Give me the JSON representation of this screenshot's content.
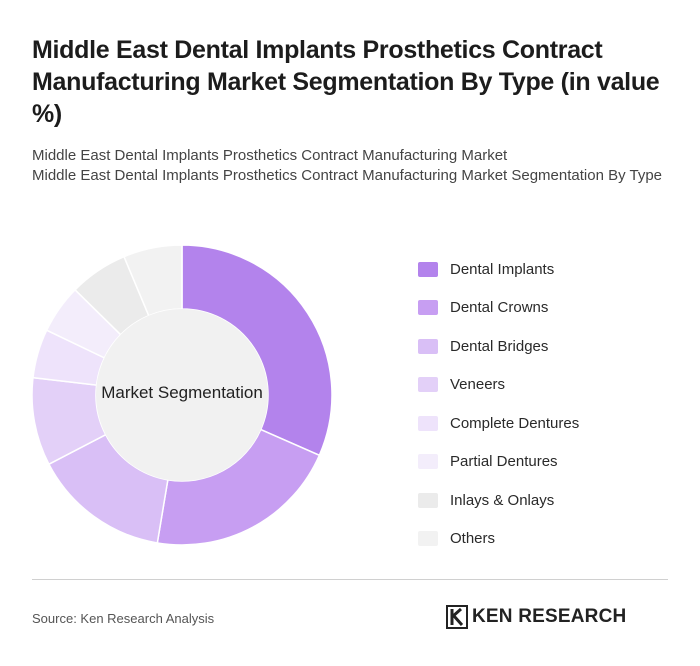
{
  "title": "Middle East Dental Implants Prosthetics Contract Manufacturing Market Segmentation By Type (in value %)",
  "subtitle_line1": "Middle East Dental Implants Prosthetics Contract Manufacturing Market",
  "subtitle_line2": "Middle East Dental Implants Prosthetics Contract Manufacturing Market Segmentation By Type",
  "center_label": "Market Segmentation",
  "source": "Source: Ken Research Analysis",
  "brand": {
    "name": "KEN RESEARCH",
    "logo_icon": "ken-research-k-logo-icon"
  },
  "chart_data": {
    "type": "pie",
    "variant": "donut",
    "center_text": "Market Segmentation",
    "legend_placement": "right",
    "categories": [
      "Dental Implants",
      "Dental Crowns",
      "Dental Bridges",
      "Veneers",
      "Complete Dentures",
      "Partial Dentures",
      "Inlays & Onlays",
      "Others"
    ],
    "values": [
      30,
      20,
      14,
      9,
      5,
      5,
      6,
      6
    ],
    "colors": [
      "#b383ec",
      "#c79ef2",
      "#d9bff6",
      "#e3d0f8",
      "#eee3fb",
      "#f3edfb",
      "#ebebeb",
      "#f2f2f2"
    ]
  }
}
